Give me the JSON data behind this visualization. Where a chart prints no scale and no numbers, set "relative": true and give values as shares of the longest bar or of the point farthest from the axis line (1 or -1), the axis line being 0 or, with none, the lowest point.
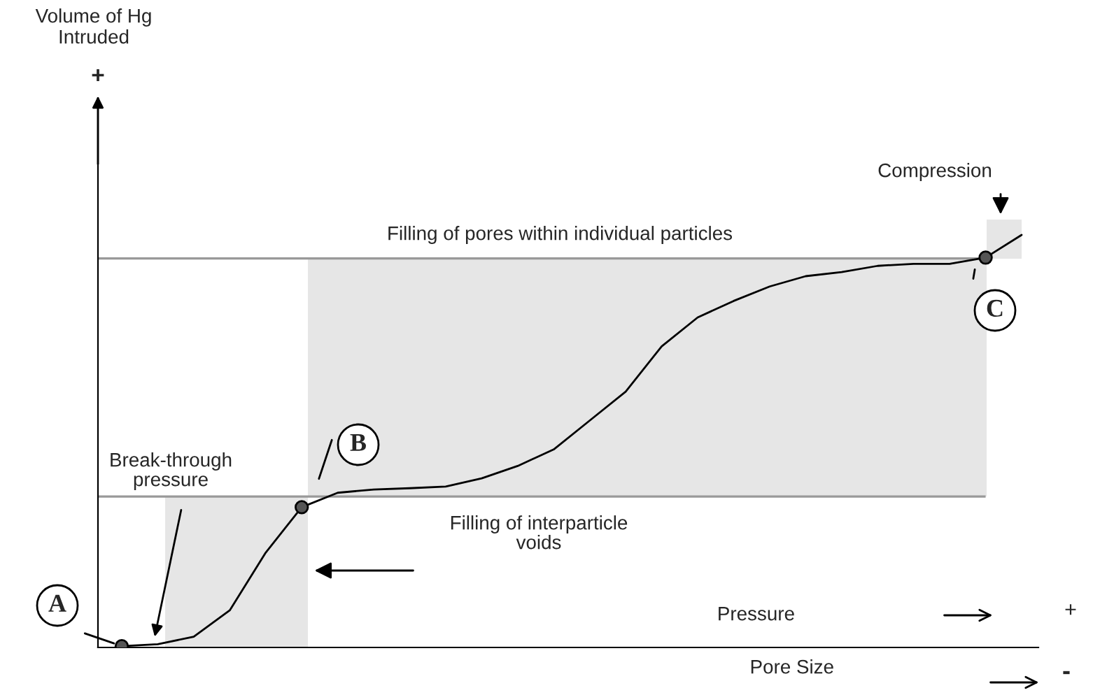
{
  "chart_data": {
    "type": "line",
    "relative": true,
    "categories": [
      null,
      null,
      null,
      null,
      null,
      null,
      null,
      null,
      null,
      null,
      null,
      null,
      null,
      null,
      null,
      null,
      null,
      null,
      null,
      null,
      null,
      null,
      null,
      null,
      null,
      null
    ],
    "series": [
      {
        "color": "#000000",
        "values": [
          0.003,
          0.008,
          0.026,
          0.09,
          0.23,
          0.34,
          0.375,
          0.383,
          0.386,
          0.39,
          0.41,
          0.44,
          0.48,
          0.55,
          0.62,
          0.73,
          0.8,
          0.84,
          0.875,
          0.9,
          0.91,
          0.925,
          0.93,
          0.93,
          0.945,
          1.0
        ]
      }
    ],
    "ref_lines": [
      {
        "axis": "y",
        "value": 0.366,
        "color": "#999999"
      },
      {
        "axis": "y",
        "value": 0.943,
        "color": "#999999"
      }
    ],
    "annotations": [
      "Volume of Hg\nIntruded",
      "+",
      "Compression",
      "Filling of pores within individual particles",
      "C",
      "B",
      "Break-through\npressure",
      "Filling of interparticle\nvoids",
      "A",
      "Pressure",
      "+",
      "Pore Size",
      "-"
    ]
  }
}
